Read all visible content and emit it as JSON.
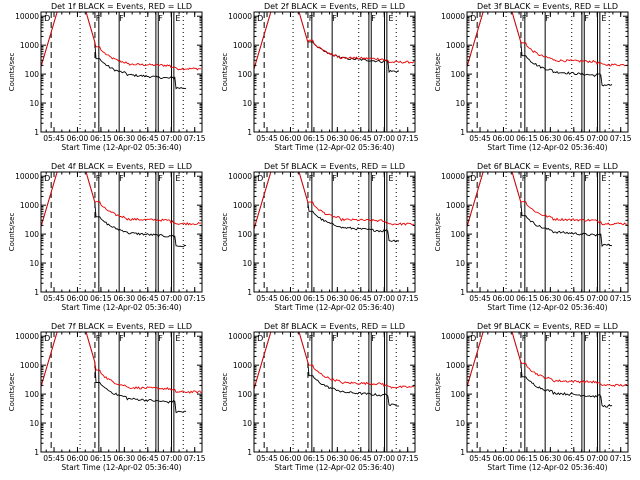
{
  "chart_data": [
    {
      "type": "line",
      "title": "Det 1f BLACK = Events, RED = LLD",
      "ylabel": "Counts/sec",
      "xlabel": "Start Time (12-Apr-02 05:36:40)",
      "pre_start": 0.4,
      "drop_end": 0.9,
      "red_plateau": 220,
      "black_plateau": 95,
      "markers": [
        "D",
        "F",
        "F",
        "F",
        "E"
      ]
    },
    {
      "type": "line",
      "title": "Det 2f BLACK = Events, RED = LLD",
      "ylabel": "Counts/sec",
      "xlabel": "Start Time (12-Apr-02 05:36:40)",
      "pre_start": 1.2,
      "drop_end": 1.4,
      "red_plateau": 370,
      "black_plateau": 360,
      "markers": [
        "D",
        "F",
        "F",
        "F",
        "E"
      ]
    },
    {
      "type": "line",
      "title": "Det 3f BLACK = Events, RED = LLD",
      "ylabel": "Counts/sec",
      "xlabel": "Start Time (12-Apr-02 05:36:40)",
      "pre_start": 0.5,
      "drop_end": 0.9,
      "red_plateau": 300,
      "black_plateau": 120,
      "markers": [
        "D",
        "F",
        "F",
        "F",
        "E"
      ]
    },
    {
      "type": "line",
      "title": "Det 4f BLACK = Events, RED = LLD",
      "ylabel": "Counts/sec",
      "xlabel": "Start Time (12-Apr-02 05:36:40)",
      "pre_start": 0.5,
      "drop_end": 1.0,
      "red_plateau": 330,
      "black_plateau": 110,
      "markers": [
        "D",
        "F",
        "F",
        "F",
        "E"
      ]
    },
    {
      "type": "line",
      "title": "Det 5f BLACK = Events, RED = LLD",
      "ylabel": "Counts/sec",
      "xlabel": "Start Time (12-Apr-02 05:36:40)",
      "pre_start": 1.2,
      "drop_end": 1.4,
      "red_plateau": 320,
      "black_plateau": 170,
      "markers": [
        "D",
        "F",
        "F",
        "F",
        "E"
      ]
    },
    {
      "type": "line",
      "title": "Det 6f BLACK = Events, RED = LLD",
      "ylabel": "Counts/sec",
      "xlabel": "Start Time (12-Apr-02 05:36:40)",
      "pre_start": 0.5,
      "drop_end": 1.0,
      "red_plateau": 330,
      "black_plateau": 120,
      "markers": [
        "D",
        "F",
        "F",
        "F",
        "E"
      ]
    },
    {
      "type": "line",
      "title": "Det 7f BLACK = Events, RED = LLD",
      "ylabel": "Counts/sec",
      "xlabel": "Start Time (12-Apr-02 05:36:40)",
      "pre_start": 0.4,
      "drop_end": 1.0,
      "red_plateau": 170,
      "black_plateau": 70,
      "markers": [
        "D",
        "F",
        "F",
        "F",
        "E"
      ]
    },
    {
      "type": "line",
      "title": "Det 8f BLACK = Events, RED = LLD",
      "ylabel": "Counts/sec",
      "xlabel": "Start Time (12-Apr-02 05:36:40)",
      "pre_start": 1.2,
      "drop_end": 1.4,
      "red_plateau": 250,
      "black_plateau": 120,
      "markers": [
        "D",
        "F",
        "F",
        "F",
        "E"
      ]
    },
    {
      "type": "line",
      "title": "Det 9f BLACK = Events, RED = LLD",
      "ylabel": "Counts/sec",
      "xlabel": "Start Time (12-Apr-02 05:36:40)",
      "pre_start": 0.5,
      "drop_end": 1.0,
      "red_plateau": 290,
      "black_plateau": 110,
      "markers": [
        "D",
        "F",
        "F",
        "F",
        "E"
      ]
    }
  ],
  "common": {
    "x_ticks": [
      "05:45",
      "06:00",
      "06:15",
      "06:30",
      "06:45",
      "07:00",
      "07:15"
    ],
    "x_tick_minutes": [
      8.33,
      23.33,
      38.33,
      53.33,
      68.33,
      83.33,
      98.33
    ],
    "x_range_minutes": [
      0,
      103
    ],
    "y_ticks": [
      "1",
      "10",
      "100",
      "1000",
      "10000"
    ],
    "y_range": [
      1,
      14000
    ],
    "y_scale": "log",
    "dashed_lines_min": [
      6.5,
      34.5
    ],
    "dotted_lines_min": [
      25.0,
      67.0,
      91.0
    ],
    "solid_lines_min": [
      37.0,
      50.0,
      73.5,
      75.0,
      83.5,
      85.0
    ],
    "colors": {
      "events": "#000000",
      "lld": "#ee0000",
      "axes": "#000000"
    }
  }
}
